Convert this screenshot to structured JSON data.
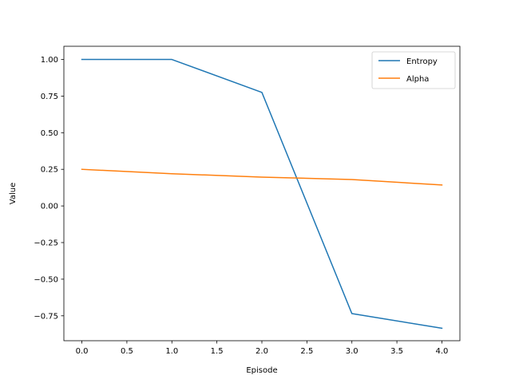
{
  "chart_data": {
    "type": "line",
    "title": "",
    "xlabel": "Episode",
    "ylabel": "Value",
    "x": [
      0,
      1,
      2,
      3,
      4
    ],
    "xlim": [
      -0.2,
      4.2
    ],
    "ylim": [
      -0.92,
      1.09
    ],
    "xticks": [
      0.0,
      0.5,
      1.0,
      1.5,
      2.0,
      2.5,
      3.0,
      3.5,
      4.0
    ],
    "xtick_labels": [
      "0.0",
      "0.5",
      "1.0",
      "1.5",
      "2.0",
      "2.5",
      "3.0",
      "3.5",
      "4.0"
    ],
    "yticks": [
      1.0,
      0.75,
      0.5,
      0.25,
      0.0,
      -0.25,
      -0.5,
      -0.75
    ],
    "ytick_labels": [
      "1.00",
      "0.75",
      "0.50",
      "0.25",
      "0.00",
      "−0.25",
      "−0.50",
      "−0.75"
    ],
    "grid": false,
    "legend_position": "top-right",
    "series": [
      {
        "name": "Entropy",
        "color": "#1f77b4",
        "values": [
          1.0,
          1.0,
          0.775,
          -0.735,
          -0.835
        ]
      },
      {
        "name": "Alpha",
        "color": "#ff7f0e",
        "values": [
          0.25,
          0.22,
          0.197,
          0.18,
          0.143
        ]
      }
    ]
  }
}
